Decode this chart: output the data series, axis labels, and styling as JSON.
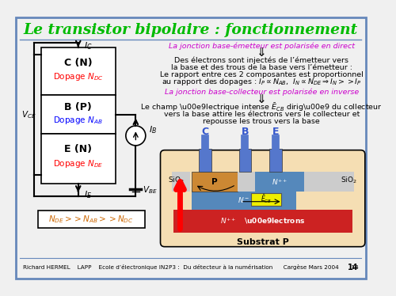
{
  "bg_color": "#f0f0f0",
  "border_color": "#6688bb",
  "title": "Le transistor bipolaire : fonctionnement",
  "title_color": "#00bb00",
  "title_fontsize": 13.5,
  "footer_text": "Richard HERMEL    LAPP    Ecole d’électronique IN2P3 :  Du détecteur à la numérisation      Cargèse Mars 2004       14",
  "left_text_magenta": "La jonction base-émetteur est polarisée en direct",
  "left_text_magenta2": "La jonction base-collecteur est polarisée en inverse",
  "body_text1a": "Des électrons sont injectés de l’émetteur vers",
  "body_text1b": "la base et des trous de la base vers l’émetteur :",
  "body_text1c": "Le rapport entre ces 2 composantes est proportionnel",
  "body_text2a": "Le champ électrique intense dirigé du collecteur",
  "body_text2b": "vers la base attire les électrons vers le collecteur et",
  "body_text2c": "repousse les trous vers la base",
  "circuit_C_label": "C (N)",
  "circuit_B_label": "B (P)",
  "circuit_E_label": "E (N)",
  "dop_C": "Dopage $N_{DC}$",
  "dop_B": "Dopage $N_{AB}$",
  "dop_E": "Dopage $N_{DE}$",
  "box_formula": "$N_{DE} >> N_{AB} >> N_{DC}$",
  "substrat_label": "Substrat P",
  "label_C": "C",
  "label_B": "B",
  "label_E": "E"
}
